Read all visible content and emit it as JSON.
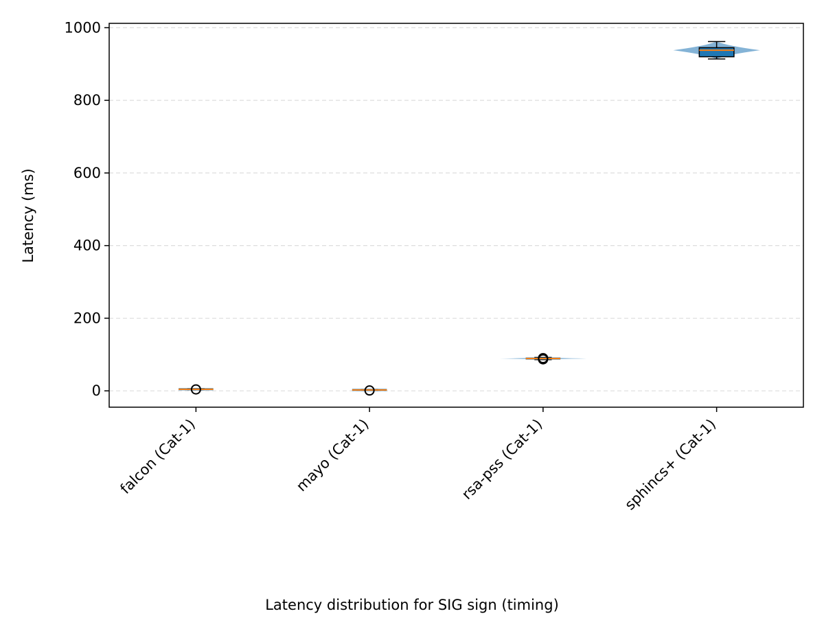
{
  "chart_data": {
    "type": "box",
    "title": "",
    "caption": "Latency distribution for SIG sign (timing)",
    "xlabel": "",
    "ylabel": "Latency (ms)",
    "ylim": [
      -45,
      1012
    ],
    "yticks": [
      0,
      200,
      400,
      600,
      800,
      1000
    ],
    "grid": "y-dashed",
    "colors": {
      "box_fill": "#1f77b4",
      "median": "#ff7f0e",
      "violin": "#6fa6cf",
      "outlier": "#000000",
      "grid": "#dddddd"
    },
    "categories": [
      "falcon (Cat-1)",
      "mayo (Cat-1)",
      "rsa-pss (Cat-1)",
      "sphincs+ (Cat-1)"
    ],
    "boxes": [
      {
        "q1": 3.5,
        "median": 4.5,
        "q3": 5.5,
        "whisker_low": 3,
        "whisker_high": 6,
        "outliers": [
          4
        ],
        "violin_min": 3,
        "violin_max": 6,
        "violin_width": 0.0
      },
      {
        "q1": 1.5,
        "median": 2.5,
        "q3": 3.5,
        "whisker_low": 1,
        "whisker_high": 4,
        "outliers": [
          1
        ],
        "violin_min": 1,
        "violin_max": 4,
        "violin_width": 0.0
      },
      {
        "q1": 87,
        "median": 89,
        "q3": 91,
        "whisker_low": 86,
        "whisker_high": 92,
        "outliers": [
          87,
          90
        ],
        "violin_min": 86,
        "violin_max": 92,
        "violin_width": 0.5
      },
      {
        "q1": 920,
        "median": 938,
        "q3": 945,
        "whisker_low": 914,
        "whisker_high": 962,
        "outliers": [],
        "violin_min": 914,
        "violin_max": 962,
        "violin_width": 0.5
      }
    ]
  }
}
